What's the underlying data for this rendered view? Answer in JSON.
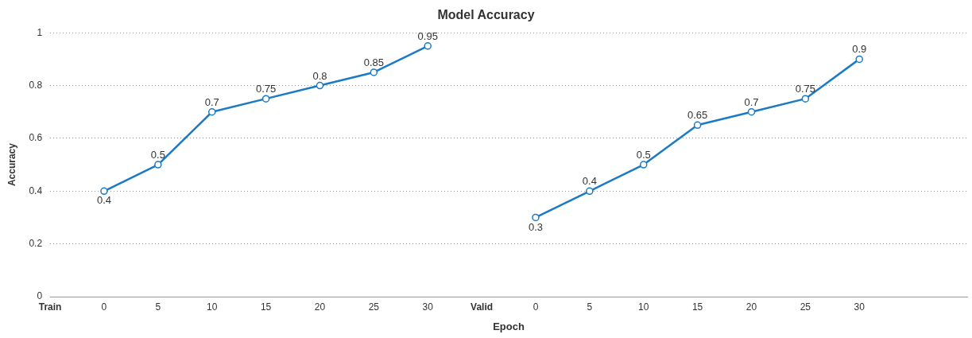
{
  "chart_data": {
    "type": "line",
    "title": "Model Accuracy",
    "xlabel": "Epoch",
    "ylabel": "Accuracy",
    "categories": [
      "Train",
      "0",
      "5",
      "10",
      "15",
      "20",
      "25",
      "30",
      "Valid",
      "0",
      "5",
      "10",
      "15",
      "20",
      "25",
      "30",
      null,
      null
    ],
    "series": [
      {
        "color": "#1a7ac6",
        "values": [
          null,
          0.4,
          0.5,
          0.7,
          0.75,
          0.8,
          0.85,
          0.95,
          null,
          0.3,
          0.4,
          0.5,
          0.65,
          0.7,
          0.75,
          0.9,
          null,
          null
        ]
      }
    ],
    "ylim": [
      0,
      1
    ],
    "yticks": [
      0,
      0.2,
      0.4,
      0.6,
      0.8,
      1
    ],
    "grid": "y",
    "legend": false,
    "marker": "circle",
    "line_style": "solid",
    "data_labels": true
  }
}
